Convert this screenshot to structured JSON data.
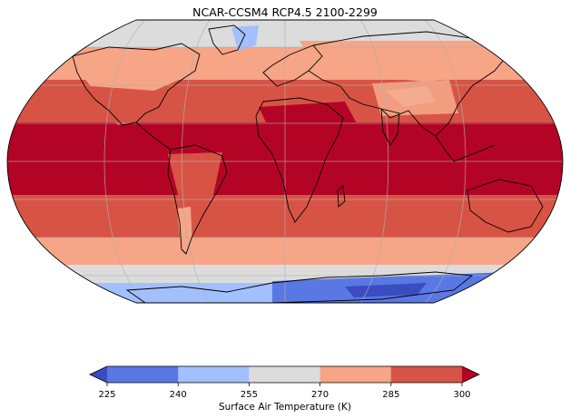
{
  "title": "NCAR-CCSM4 RCP4.5 2100-2299",
  "colorbar": {
    "label": "Surface Air Temperature (K)",
    "ticks": [
      "225",
      "240",
      "255",
      "270",
      "285",
      "300"
    ],
    "bins": [
      {
        "range": "below 225",
        "color": "#3b4cc0"
      },
      {
        "range": "225-240",
        "color": "#5a78e4"
      },
      {
        "range": "240-255",
        "color": "#a2bffe"
      },
      {
        "range": "255-270",
        "color": "#dcdcdc"
      },
      {
        "range": "270-285",
        "color": "#f6a586"
      },
      {
        "range": "285-300",
        "color": "#d75445"
      },
      {
        "range": "above 300",
        "color": "#b40426"
      }
    ],
    "extend": "both"
  },
  "map": {
    "projection": "Robinson",
    "gridlines": true,
    "coastlines": true
  }
}
